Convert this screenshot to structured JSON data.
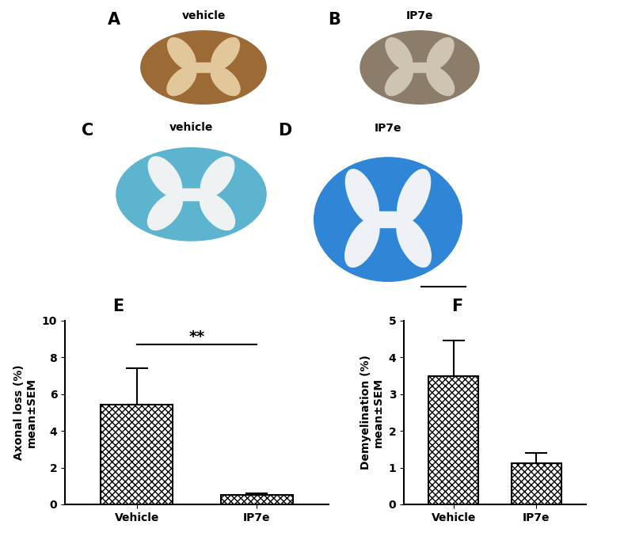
{
  "image_panels": [
    {
      "panel": "A",
      "label": "vehicle"
    },
    {
      "panel": "B",
      "label": "IP7e"
    },
    {
      "panel": "C",
      "label": "vehicle"
    },
    {
      "panel": "D",
      "label": "IP7e"
    }
  ],
  "chart_data": [
    {
      "type": "bar",
      "panel": "E",
      "categories": [
        "Vehicle",
        "IP7e"
      ],
      "values": [
        5.45,
        0.5
      ],
      "errors": [
        1.95,
        0.1
      ],
      "y_label": "Axonal loss (%)\nmean±SEM",
      "color": "#ffffff",
      "ylim": [
        0,
        10
      ],
      "yticks": [
        0,
        2,
        4,
        6,
        8,
        10
      ],
      "annotation": "**"
    },
    {
      "type": "bar",
      "panel": "F",
      "categories": [
        "Vehicle",
        "IP7e"
      ],
      "values": [
        3.5,
        1.13
      ],
      "errors": [
        0.97,
        0.27
      ],
      "y_label": "Demyelination (%)\nmean±SEM",
      "color": "#ffffff",
      "ylim": [
        0,
        5
      ],
      "yticks": [
        0,
        1,
        2,
        3,
        4,
        5
      ]
    }
  ]
}
